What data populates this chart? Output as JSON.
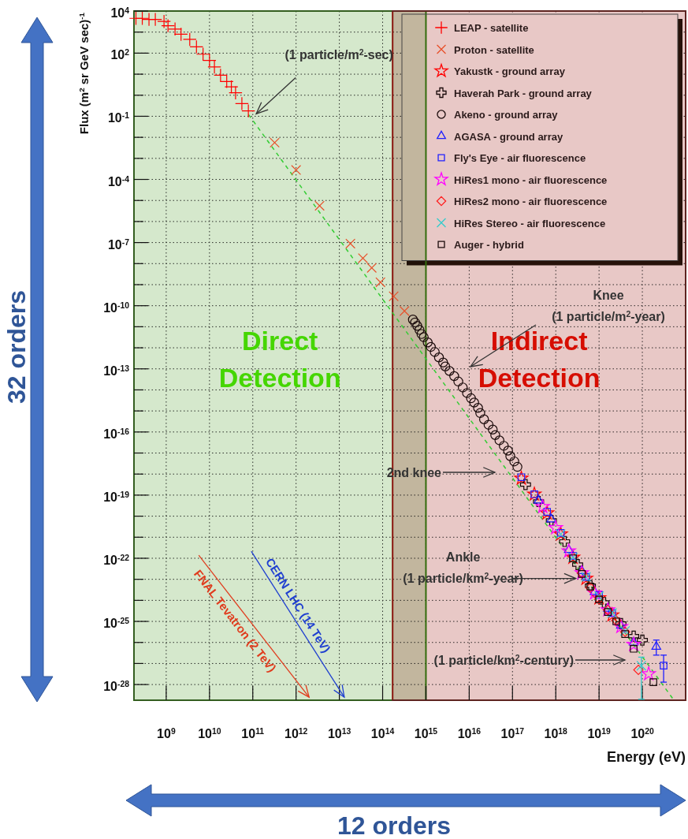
{
  "chart_data": {
    "type": "scatter",
    "xlabel": "Energy (eV)",
    "ylabel": "Flux (m$^{2}$ sr GeV sec)$^{-1}$",
    "log": "xy",
    "xlim": [
      180000000.0,
      1e+21
    ],
    "ylim": [
      1.8e-29,
      10000.0
    ],
    "xticks": [
      {
        "value": 1000000000.0,
        "label": "10$^{9}$"
      },
      {
        "value": 10000000000.0,
        "label": "10$^{10}$"
      },
      {
        "value": 100000000000.0,
        "label": "10$^{11}$"
      },
      {
        "value": 1000000000000.0,
        "label": "10$^{12}$"
      },
      {
        "value": 10000000000000.0,
        "label": "10$^{13}$"
      },
      {
        "value": 100000000000000.0,
        "label": "10$^{14}$"
      },
      {
        "value": 1000000000000000.0,
        "label": "10$^{15}$"
      },
      {
        "value": 1e+16,
        "label": "10$^{16}$"
      },
      {
        "value": 1e+17,
        "label": "10$^{17}$"
      },
      {
        "value": 1e+18,
        "label": "10$^{18}$"
      },
      {
        "value": 1e+19,
        "label": "10$^{19}$"
      },
      {
        "value": 1e+20,
        "label": "10$^{20}$"
      }
    ],
    "yticks": [
      {
        "value": 10000.0,
        "label": "10$^{4}$"
      },
      {
        "value": 1000.0,
        "label": null
      },
      {
        "value": 100,
        "label": "10$^{2}$"
      },
      {
        "value": 10,
        "label": null
      },
      {
        "value": 1,
        "label": null
      },
      {
        "value": 0.1,
        "label": "10$^{-1}$"
      },
      {
        "value": 0.01,
        "label": null
      },
      {
        "value": 0.001,
        "label": null
      },
      {
        "value": 0.0001,
        "label": "10$^{-4}$"
      },
      {
        "value": 1e-05,
        "label": null
      },
      {
        "value": 1e-06,
        "label": null
      },
      {
        "value": 1e-07,
        "label": "10$^{-7}$"
      },
      {
        "value": 1e-08,
        "label": null
      },
      {
        "value": 1e-09,
        "label": null
      },
      {
        "value": 1e-10,
        "label": "10$^{-10}$"
      },
      {
        "value": 1e-11,
        "label": null
      },
      {
        "value": 1e-12,
        "label": null
      },
      {
        "value": 1e-13,
        "label": "10$^{-13}$"
      },
      {
        "value": 1e-14,
        "label": null
      },
      {
        "value": 1e-15,
        "label": null
      },
      {
        "value": 1e-16,
        "label": "10$^{-16}$"
      },
      {
        "value": 1e-17,
        "label": null
      },
      {
        "value": 1e-18,
        "label": null
      },
      {
        "value": 1e-19,
        "label": "10$^{-19}$"
      },
      {
        "value": 1e-20,
        "label": null
      },
      {
        "value": 1e-21,
        "label": null
      },
      {
        "value": 1e-22,
        "label": "10$^{-22}$"
      },
      {
        "value": 1e-23,
        "label": null
      },
      {
        "value": 1e-24,
        "label": null
      },
      {
        "value": 1e-25,
        "label": "10$^{-25}$"
      },
      {
        "value": 1e-26,
        "label": null
      },
      {
        "value": 1e-27,
        "label": null
      },
      {
        "value": 1e-28,
        "label": "10$^{-28}$"
      }
    ],
    "grid": true,
    "legend": "top right",
    "bands": [
      {
        "axis": "x",
        "from": 180000000.0,
        "to": 1000000000000000.0,
        "label": "Direct Detection",
        "color": "#d5e8cc"
      },
      {
        "axis": "x",
        "from": 170000000000000.0,
        "to": 1e+21,
        "label": "Indirect Detection",
        "color": "#e8c8c6"
      }
    ],
    "series": [
      {
        "type": "line",
        "color": "#33cc33",
        "line_style": "dashed",
        "x": [
          80000000000.0,
          5e+20
        ],
        "values": [
          0.12,
          2.2e-29
        ]
      },
      {
        "name": "LEAP - satellite",
        "color": "#ff0000",
        "marker": "plus",
        "x": [
          200000000.0,
          280000000.0,
          400000000.0,
          560000000.0,
          890000000.0,
          1100000000.0,
          1600000000.0,
          2200000000.0,
          3500000000.0,
          5000000000.0,
          7100000000.0,
          10000000000.0,
          13000000000.0,
          18000000000.0,
          25000000000.0,
          32000000000.0,
          40000000000.0,
          56000000000.0,
          79000000000.0
        ],
        "values": [
          4500,
          4500,
          4000,
          4000,
          3200,
          2000,
          1400,
          790,
          450,
          200,
          89,
          45,
          22,
          8.9,
          4.5,
          2.5,
          1.3,
          0.4,
          0.18
        ]
      },
      {
        "name": "Proton - satellite",
        "color": "#e8502a",
        "marker": "x",
        "x": [
          320000000000.0,
          1000000000000.0,
          3500000000000.0,
          18000000000000.0,
          35000000000000.0,
          56000000000000.0,
          89000000000000.0,
          180000000000000.0,
          320000000000000.0
        ],
        "values": [
          0.0056,
          0.00028,
          5.6e-06,
          8.9e-08,
          1.8e-08,
          6.3e-09,
          1.3e-09,
          2.8e-10,
          5.6e-11
        ]
      },
      {
        "name": "Yakustk - ground array",
        "color": "#ff0000",
        "marker": "star",
        "x": [
          1.6e+17,
          3.2e+17,
          6.3e+17,
          1.3e+18,
          2.5e+18,
          5e+18,
          1e+19,
          2e+19
        ],
        "values": [
          6.3e-19,
          1.1e-19,
          1.4e-20,
          1.4e-21,
          1.1e-22,
          1.1e-23,
          1.3e-24,
          2e-25
        ]
      },
      {
        "name": "Haverah Park - ground array",
        "color": "#1a0a0a",
        "marker": "cross",
        "x": [
          2e+17,
          4e+17,
          7.9e+17,
          1.6e+18,
          3.2e+18,
          6.3e+18,
          1.3e+19,
          3.2e+19,
          6.3e+19,
          1e+20
        ],
        "values": [
          3.2e-19,
          5e-20,
          6.3e-21,
          6.3e-22,
          5e-23,
          5e-24,
          7.9e-25,
          7.9e-26,
          2e-26,
          1.3e-26
        ]
      },
      {
        "name": "Akeno - ground array",
        "color": "#1a0a0a",
        "marker": "circle",
        "x": [
          500000000000000.0,
          560000000000000.0,
          630000000000000.0,
          710000000000000.0,
          790000000000000.0,
          890000000000000.0,
          1100000000000000.0,
          1300000000000000.0,
          1600000000000000.0,
          2000000000000000.0,
          2500000000000000.0,
          2800000000000000.0,
          3500000000000000.0,
          4500000000000000.0,
          5600000000000000.0,
          7100000000000000.0,
          8900000000000000.0,
          1.1e+16,
          1.3e+16,
          1.6e+16,
          1.8e+16,
          2.2e+16,
          2.8e+16,
          3.5e+16,
          4e+16,
          5e+16,
          6.3e+16,
          7.9e+16,
          8.9e+16,
          1.1e+17,
          1.3e+17
        ],
        "values": [
          2.2e-11,
          1.6e-11,
          1.1e-11,
          7.1e-12,
          4.5e-12,
          3.2e-12,
          1.8e-12,
          1.1e-12,
          6.3e-13,
          3.5e-13,
          2e-13,
          1.3e-13,
          7.9e-14,
          4.5e-14,
          2.5e-14,
          1.3e-14,
          7.1e-15,
          4e-15,
          2.5e-15,
          1.4e-15,
          7.9e-16,
          4e-16,
          2.2e-16,
          1.3e-16,
          7.1e-17,
          4e-17,
          2.2e-17,
          1.3e-17,
          7.1e-18,
          4e-18,
          2.2e-18
        ]
      },
      {
        "name": "AGASA - ground array",
        "color": "#2020ff",
        "marker": "triangle",
        "x": [
          4e+17,
          7.9e+17,
          2e+18,
          4e+18,
          7.9e+18,
          1.6e+19,
          3.2e+19,
          6.3e+19,
          2.1e+20
        ],
        "values": [
          5.6e-20,
          7.1e-21,
          2.5e-22,
          2.5e-23,
          2.5e-24,
          4e-25,
          6.3e-26,
          1e-26,
          6.3e-27
        ],
        "errors": [
          null,
          null,
          null,
          null,
          null,
          null,
          null,
          null,
          [
            2.5e-27,
            1.3e-26
          ]
        ]
      },
      {
        "name": "Fly's Eye - air fluorescence",
        "color": "#2020ff",
        "marker": "square",
        "x": [
          1.6e+17,
          3.2e+17,
          6.3e+17,
          1.3e+18,
          2.5e+18,
          5e+18,
          1e+19,
          2e+19,
          3.1e+20
        ],
        "values": [
          7.1e-19,
          1.1e-19,
          1.6e-20,
          1.6e-21,
          1.3e-22,
          1.3e-23,
          1.8e-24,
          2.5e-25,
          7.9e-28
        ],
        "errors": [
          null,
          null,
          null,
          null,
          null,
          null,
          null,
          null,
          [
            1.3e-28,
            2.5e-27
          ]
        ]
      },
      {
        "name": "HiRes1 mono - air fluorescence",
        "color": "#ff00ff",
        "marker": "star",
        "x": [
          5e+17,
          1e+18,
          2e+18,
          4e+18,
          7.9e+18,
          1.6e+19,
          3.2e+19,
          6.3e+19,
          1.4e+20
        ],
        "values": [
          2.8e-20,
          2.8e-21,
          2.2e-22,
          2e-23,
          2.2e-24,
          3.5e-25,
          5.6e-26,
          7.9e-27,
          3.2e-28
        ]
      },
      {
        "name": "HiRes2 mono - air fluorescence",
        "color": "#ff2020",
        "marker": "diamond",
        "x": [
          4e+18,
          6.3e+18,
          1e+19,
          1.6e+19,
          2.5e+19,
          4e+19,
          8.1e+19
        ],
        "values": [
          2e-23,
          4e-24,
          1.1e-24,
          3.5e-25,
          1.1e-25,
          3.2e-26,
          5e-28
        ]
      },
      {
        "name": "HiRes Stereo - air fluorescence",
        "color": "#33cccc",
        "marker": "x",
        "x": [
          1.3e+18,
          2.5e+18,
          5e+18,
          1e+19,
          2e+19,
          4e+19,
          9.5e+19
        ],
        "values": [
          1.4e-21,
          1.1e-22,
          1.3e-23,
          1.6e-24,
          2.5e-25,
          3.5e-26,
          7.9e-28
        ],
        "errors": [
          null,
          null,
          null,
          null,
          null,
          null,
          [
            2e-29,
            2e-27
          ]
        ]
      },
      {
        "name": "Auger - hybrid",
        "color": "#1a0a0a",
        "marker": "square",
        "x": [
          2.5e+18,
          4e+18,
          6.3e+18,
          1e+19,
          1.6e+19,
          2.5e+19,
          4e+19,
          6.3e+19,
          1.8e+20
        ],
        "values": [
          1e-22,
          1.8e-23,
          4.5e-24,
          1.1e-24,
          2.8e-25,
          1e-25,
          2.5e-26,
          5e-27,
          1.3e-28
        ]
      }
    ],
    "annotations": [
      {
        "text": "(1 particle/m$^{2}$-sec)",
        "x": 120000000000.0,
        "y": 0.13
      },
      "Knee\n(1 particle/m$^{2}$-year)",
      "2nd knee",
      {
        "text": "Ankle\n(1 particle/km$^{2}$-year)",
        "x": 2.9e+18,
        "y": 1.1e-23
      },
      "(1 particle/km$^{2}$-century)",
      {
        "text": "FNAL Tevatron (2 TeV)",
        "x": 2000000000000.0,
        "y": 2.5e-29
      },
      {
        "text": "CERN LHC (14 TeV)",
        "x": 13000000000000.0,
        "y": 2.5e-29
      },
      "32 orders",
      "12 orders"
    ]
  }
}
